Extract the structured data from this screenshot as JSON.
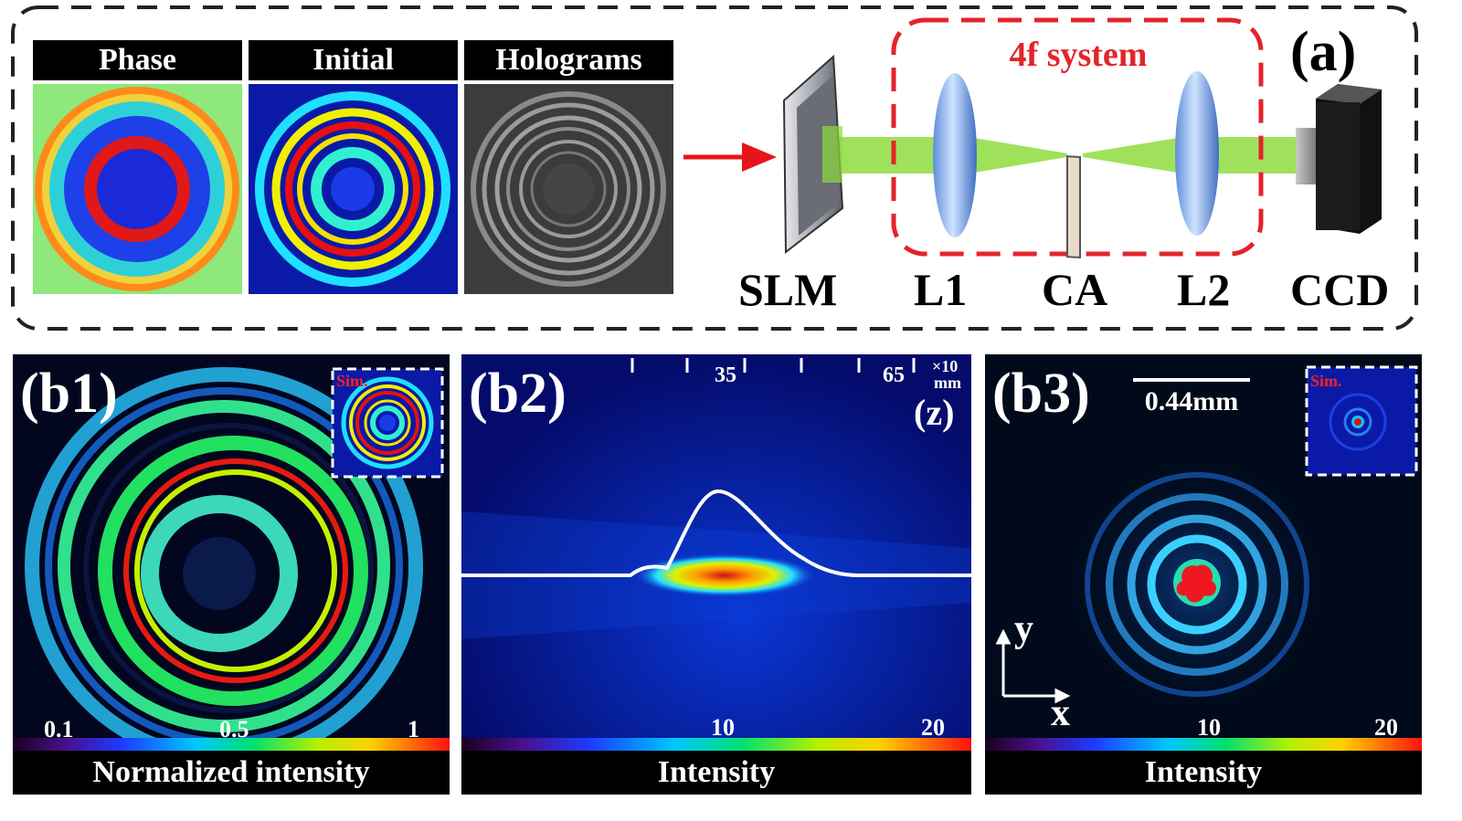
{
  "panel_a": {
    "label": "(a)",
    "headers": [
      "Phase",
      "Initial",
      "Holograms"
    ],
    "system_label": "4f system",
    "components": [
      "SLM",
      "L1",
      "CA",
      "L2",
      "CCD"
    ],
    "colors": {
      "beam": "#8fdc3e",
      "arrow": "#e8141b",
      "dash_box": "#e3242b"
    }
  },
  "panel_b1": {
    "label": "(b1)",
    "inset_label": "Sim.",
    "colorbar_ticks": [
      "0.1",
      "0.5",
      "1"
    ],
    "colorbar_title": "Normalized  intensity"
  },
  "panel_b2": {
    "label": "(b2)",
    "top_ticks": [
      "35",
      "65"
    ],
    "top_unit_line1": "×10",
    "top_unit_line2": "mm",
    "axis_label": "(z)",
    "colorbar_ticks": [
      "10",
      "20"
    ],
    "colorbar_title": "Intensity"
  },
  "panel_b3": {
    "label": "(b3)",
    "scale_bar": "0.44mm",
    "inset_label": "Sim.",
    "axis_x": "x",
    "axis_y": "y",
    "colorbar_ticks": [
      "10",
      "20"
    ],
    "colorbar_title": "Intensity"
  }
}
